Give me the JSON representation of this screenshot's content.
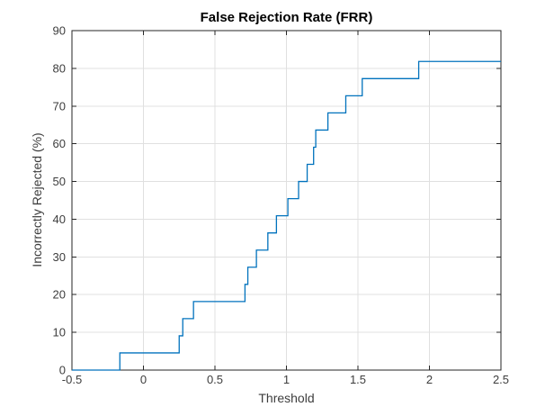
{
  "chart_data": {
    "type": "line",
    "subtype": "step",
    "title": "False Rejection Rate (FRR)",
    "xlabel": "Threshold",
    "ylabel": "Incorrectly Rejected (%)",
    "xlim": [
      -0.5,
      2.5
    ],
    "ylim": [
      0,
      90
    ],
    "xticks": [
      -0.5,
      0,
      0.5,
      1,
      1.5,
      2,
      2.5
    ],
    "xtick_labels": [
      "-0.5",
      "0",
      "0.5",
      "1",
      "1.5",
      "2",
      "2.5"
    ],
    "yticks": [
      0,
      10,
      20,
      30,
      40,
      50,
      60,
      70,
      80,
      90
    ],
    "ytick_labels": [
      "0",
      "10",
      "20",
      "30",
      "40",
      "50",
      "60",
      "70",
      "80",
      "90"
    ],
    "grid": true,
    "legend": null,
    "line_color": "#0072BD",
    "grid_color": "#e0e0e0",
    "axis_color": "#262626",
    "tick_label_color": "#3d3d3d",
    "title_color": "#000000",
    "steps_note": "Each entry: from threshold x onward, FRR equals y percent (step-after). 22 genuine samples, step size 100/22 = 4.545%.",
    "steps": [
      {
        "x": -0.5,
        "y": 0
      },
      {
        "x": -0.165,
        "y": 4.545
      },
      {
        "x": 0.25,
        "y": 9.091
      },
      {
        "x": 0.275,
        "y": 13.636
      },
      {
        "x": 0.35,
        "y": 18.182
      },
      {
        "x": 0.71,
        "y": 22.727
      },
      {
        "x": 0.73,
        "y": 27.273
      },
      {
        "x": 0.79,
        "y": 31.818
      },
      {
        "x": 0.87,
        "y": 36.364
      },
      {
        "x": 0.93,
        "y": 40.909
      },
      {
        "x": 1.01,
        "y": 45.455
      },
      {
        "x": 1.085,
        "y": 50.0
      },
      {
        "x": 1.145,
        "y": 54.545
      },
      {
        "x": 1.19,
        "y": 59.091
      },
      {
        "x": 1.205,
        "y": 63.636
      },
      {
        "x": 1.29,
        "y": 68.182
      },
      {
        "x": 1.415,
        "y": 72.727
      },
      {
        "x": 1.53,
        "y": 77.273
      },
      {
        "x": 1.925,
        "y": 81.818
      },
      {
        "x": 2.5,
        "y": 81.818
      }
    ]
  }
}
